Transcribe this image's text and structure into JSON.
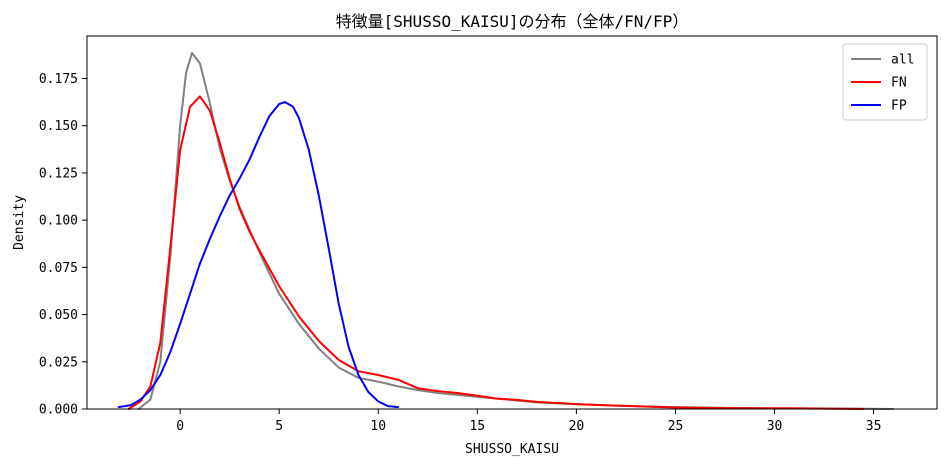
{
  "chart_data": {
    "type": "line",
    "title": "特徴量[SHUSSO_KAISU]の分布（全体/FN/FP）",
    "xlabel": "SHUSSO_KAISU",
    "ylabel": "Density",
    "xlim": [
      -4.7,
      38.2
    ],
    "ylim": [
      0,
      0.1975
    ],
    "x_ticks": [
      0,
      5,
      10,
      15,
      20,
      25,
      30,
      35
    ],
    "y_ticks": [
      0.0,
      0.025,
      0.05,
      0.075,
      0.1,
      0.125,
      0.15,
      0.175
    ],
    "x_tick_labels": [
      "0",
      "5",
      "10",
      "15",
      "20",
      "25",
      "30",
      "35"
    ],
    "y_tick_labels": [
      "0.000",
      "0.025",
      "0.050",
      "0.075",
      "0.100",
      "0.125",
      "0.150",
      "0.175"
    ],
    "grid": false,
    "legend_position": "top-right",
    "series": [
      {
        "name": "all",
        "color": "#808080",
        "points": [
          [
            -2.1,
            0.0
          ],
          [
            -1.5,
            0.005
          ],
          [
            -1.0,
            0.025
          ],
          [
            -0.5,
            0.08
          ],
          [
            0.0,
            0.15
          ],
          [
            0.3,
            0.178
          ],
          [
            0.6,
            0.1885
          ],
          [
            1.0,
            0.183
          ],
          [
            1.5,
            0.162
          ],
          [
            2.0,
            0.138
          ],
          [
            2.5,
            0.121
          ],
          [
            3.0,
            0.107
          ],
          [
            3.5,
            0.095
          ],
          [
            4.0,
            0.083
          ],
          [
            4.5,
            0.072
          ],
          [
            5.0,
            0.061
          ],
          [
            6.0,
            0.045
          ],
          [
            7.0,
            0.032
          ],
          [
            8.0,
            0.022
          ],
          [
            9.0,
            0.0165
          ],
          [
            10.0,
            0.0145
          ],
          [
            11.0,
            0.012
          ],
          [
            12.0,
            0.01
          ],
          [
            13.0,
            0.0085
          ],
          [
            14.0,
            0.0075
          ],
          [
            15.0,
            0.0065
          ],
          [
            16.0,
            0.0055
          ],
          [
            17.0,
            0.0045
          ],
          [
            18.0,
            0.0035
          ],
          [
            20.0,
            0.0025
          ],
          [
            22.0,
            0.0018
          ],
          [
            25.0,
            0.001
          ],
          [
            28.0,
            0.0005
          ],
          [
            31.0,
            0.0004
          ],
          [
            34.0,
            0.0002
          ],
          [
            36.0,
            0.0
          ]
        ]
      },
      {
        "name": "FN",
        "color": "#ff0000",
        "points": [
          [
            -2.6,
            0.0
          ],
          [
            -2.0,
            0.004
          ],
          [
            -1.5,
            0.012
          ],
          [
            -1.0,
            0.035
          ],
          [
            -0.5,
            0.085
          ],
          [
            0.0,
            0.137
          ],
          [
            0.5,
            0.16
          ],
          [
            1.0,
            0.1655
          ],
          [
            1.5,
            0.158
          ],
          [
            2.0,
            0.141
          ],
          [
            2.5,
            0.122
          ],
          [
            3.0,
            0.106
          ],
          [
            3.5,
            0.094
          ],
          [
            4.0,
            0.084
          ],
          [
            5.0,
            0.065
          ],
          [
            6.0,
            0.049
          ],
          [
            7.0,
            0.036
          ],
          [
            8.0,
            0.026
          ],
          [
            9.0,
            0.02
          ],
          [
            10.0,
            0.018
          ],
          [
            11.0,
            0.0155
          ],
          [
            12.0,
            0.011
          ],
          [
            13.0,
            0.0095
          ],
          [
            14.0,
            0.0085
          ],
          [
            15.0,
            0.007
          ],
          [
            16.0,
            0.0055
          ],
          [
            17.0,
            0.0048
          ],
          [
            18.0,
            0.0038
          ],
          [
            20.0,
            0.0026
          ],
          [
            22.0,
            0.0018
          ],
          [
            25.0,
            0.0008
          ],
          [
            28.0,
            0.0004
          ],
          [
            31.0,
            0.0003
          ],
          [
            34.5,
            0.0
          ]
        ]
      },
      {
        "name": "FP",
        "color": "#0000ff",
        "points": [
          [
            -3.1,
            0.001
          ],
          [
            -2.5,
            0.002
          ],
          [
            -2.0,
            0.005
          ],
          [
            -1.5,
            0.01
          ],
          [
            -1.0,
            0.018
          ],
          [
            -0.5,
            0.03
          ],
          [
            0.0,
            0.045
          ],
          [
            0.5,
            0.061
          ],
          [
            1.0,
            0.077
          ],
          [
            1.5,
            0.09
          ],
          [
            2.0,
            0.102
          ],
          [
            2.5,
            0.113
          ],
          [
            3.0,
            0.122
          ],
          [
            3.5,
            0.132
          ],
          [
            4.0,
            0.144
          ],
          [
            4.5,
            0.155
          ],
          [
            5.0,
            0.1615
          ],
          [
            5.3,
            0.1625
          ],
          [
            5.7,
            0.16
          ],
          [
            6.0,
            0.154
          ],
          [
            6.5,
            0.137
          ],
          [
            7.0,
            0.113
          ],
          [
            7.5,
            0.085
          ],
          [
            8.0,
            0.056
          ],
          [
            8.5,
            0.033
          ],
          [
            9.0,
            0.018
          ],
          [
            9.5,
            0.009
          ],
          [
            10.0,
            0.004
          ],
          [
            10.5,
            0.0015
          ],
          [
            11.0,
            0.001
          ]
        ]
      }
    ]
  }
}
